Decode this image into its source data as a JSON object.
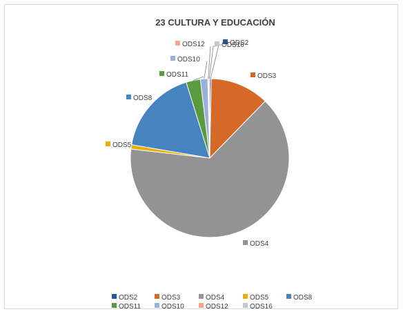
{
  "chart_data": {
    "type": "pie",
    "title": "23 CULTURA Y EDUCACIÓN",
    "legend_position": "bottom",
    "slices": [
      {
        "label": "ODS2",
        "value": 0.3,
        "color": "#2e5597"
      },
      {
        "label": "ODS3",
        "value": 12.0,
        "color": "#d4692a"
      },
      {
        "label": "ODS4",
        "value": 64.5,
        "color": "#939393"
      },
      {
        "label": "ODS5",
        "value": 0.9,
        "color": "#e8b00c"
      },
      {
        "label": "ODS8",
        "value": 17.5,
        "color": "#4783bf"
      },
      {
        "label": "ODS11",
        "value": 2.9,
        "color": "#5b9b3f"
      },
      {
        "label": "ODS10",
        "value": 1.5,
        "color": "#9aafdb"
      },
      {
        "label": "ODS12",
        "value": 0.2,
        "color": "#f4a68a"
      },
      {
        "label": "ODS16",
        "value": 0.2,
        "color": "#c7c7c7"
      }
    ],
    "legend_order": [
      "ODS2",
      "ODS3",
      "ODS4",
      "ODS5",
      "ODS8",
      "ODS11",
      "ODS10",
      "ODS12",
      "ODS16"
    ]
  }
}
